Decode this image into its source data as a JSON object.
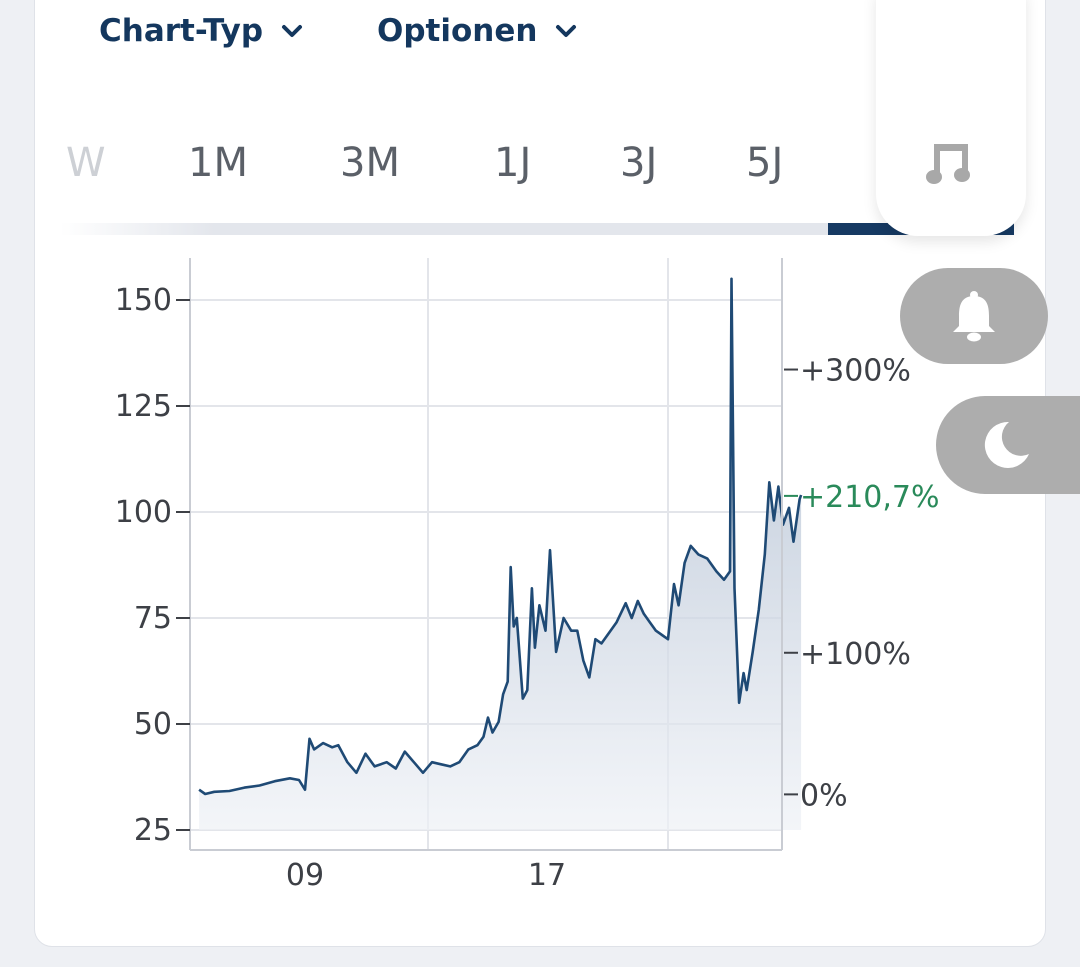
{
  "toolbar": {
    "chart_type_label": "Chart-Typ",
    "options_label": "Optionen"
  },
  "tabs": {
    "partial_label": "W",
    "items": [
      "1M",
      "3M",
      "1J",
      "3J",
      "5J"
    ]
  },
  "icons": {
    "music": "music-note-icon",
    "bell": "bell-icon",
    "moon": "moon-icon"
  },
  "colors": {
    "brand": "#14375e",
    "line": "#1f4a75",
    "positive": "#2a8a5a",
    "pill": "#adadad"
  },
  "chart_data": {
    "type": "area",
    "title": "",
    "xlabel": "",
    "ylabel": "",
    "ylim": [
      20,
      160
    ],
    "x_ticks": [
      {
        "label": "09",
        "x": 9
      },
      {
        "label": "17",
        "x": 17
      }
    ],
    "x_range": [
      5.5,
      24.7
    ],
    "y_ticks": [
      25,
      50,
      75,
      100,
      125,
      150
    ],
    "right_axis": {
      "ticks": [
        {
          "label": "+300%",
          "value": 133.6
        },
        {
          "label": "+100%",
          "value": 66.8
        },
        {
          "label": "0%",
          "value": 33.4
        }
      ],
      "current_label": "+210,7%",
      "current_value": 103.8
    },
    "series": [
      {
        "points": [
          [
            5.5,
            34.5
          ],
          [
            5.7,
            33.5
          ],
          [
            6.0,
            34.0
          ],
          [
            6.5,
            34.2
          ],
          [
            7.0,
            35.0
          ],
          [
            7.5,
            35.5
          ],
          [
            8.0,
            36.5
          ],
          [
            8.5,
            37.2
          ],
          [
            8.8,
            36.8
          ],
          [
            9.0,
            34.5
          ],
          [
            9.15,
            46.5
          ],
          [
            9.3,
            44.0
          ],
          [
            9.6,
            45.5
          ],
          [
            9.9,
            44.5
          ],
          [
            10.1,
            45.0
          ],
          [
            10.4,
            41.0
          ],
          [
            10.7,
            38.5
          ],
          [
            11.0,
            43.0
          ],
          [
            11.3,
            40.0
          ],
          [
            11.7,
            41.0
          ],
          [
            12.0,
            39.5
          ],
          [
            12.3,
            43.5
          ],
          [
            12.6,
            41.0
          ],
          [
            12.9,
            38.5
          ],
          [
            13.2,
            41.0
          ],
          [
            13.5,
            40.5
          ],
          [
            13.8,
            40.0
          ],
          [
            14.1,
            41.0
          ],
          [
            14.4,
            44.0
          ],
          [
            14.7,
            45.0
          ],
          [
            14.9,
            47.0
          ],
          [
            15.05,
            51.5
          ],
          [
            15.2,
            48.0
          ],
          [
            15.4,
            50.5
          ],
          [
            15.55,
            57.0
          ],
          [
            15.7,
            60.0
          ],
          [
            15.8,
            87.0
          ],
          [
            15.9,
            73.0
          ],
          [
            16.0,
            75.0
          ],
          [
            16.2,
            56.0
          ],
          [
            16.35,
            58.0
          ],
          [
            16.5,
            82.0
          ],
          [
            16.6,
            68.0
          ],
          [
            16.75,
            78.0
          ],
          [
            16.95,
            72.0
          ],
          [
            17.1,
            91.0
          ],
          [
            17.3,
            67.0
          ],
          [
            17.55,
            75.0
          ],
          [
            17.8,
            72.0
          ],
          [
            18.0,
            72.0
          ],
          [
            18.2,
            65.0
          ],
          [
            18.4,
            61.0
          ],
          [
            18.6,
            70.0
          ],
          [
            18.8,
            69.0
          ],
          [
            19.0,
            71.0
          ],
          [
            19.3,
            74.0
          ],
          [
            19.6,
            78.5
          ],
          [
            19.8,
            75.0
          ],
          [
            20.0,
            79.0
          ],
          [
            20.2,
            76.0
          ],
          [
            20.4,
            74.0
          ],
          [
            20.6,
            72.0
          ],
          [
            20.8,
            71.0
          ],
          [
            21.0,
            70.0
          ],
          [
            21.2,
            83.0
          ],
          [
            21.35,
            78.0
          ],
          [
            21.55,
            88.0
          ],
          [
            21.75,
            92.0
          ],
          [
            22.0,
            90.0
          ],
          [
            22.3,
            89.0
          ],
          [
            22.6,
            86.0
          ],
          [
            22.85,
            84.0
          ],
          [
            23.05,
            86.0
          ],
          [
            23.1,
            155.0
          ],
          [
            23.2,
            82.0
          ],
          [
            23.35,
            55.0
          ],
          [
            23.5,
            62.0
          ],
          [
            23.6,
            58.0
          ],
          [
            23.8,
            67.0
          ],
          [
            24.0,
            77.0
          ],
          [
            24.2,
            90.0
          ],
          [
            24.35,
            107.0
          ],
          [
            24.5,
            98.0
          ],
          [
            24.65,
            106.0
          ],
          [
            24.8,
            97.0
          ],
          [
            25.0,
            101.0
          ],
          [
            25.15,
            93.0
          ],
          [
            25.35,
            103.0
          ],
          [
            25.4,
            104.0
          ]
        ]
      }
    ],
    "grid": true
  }
}
